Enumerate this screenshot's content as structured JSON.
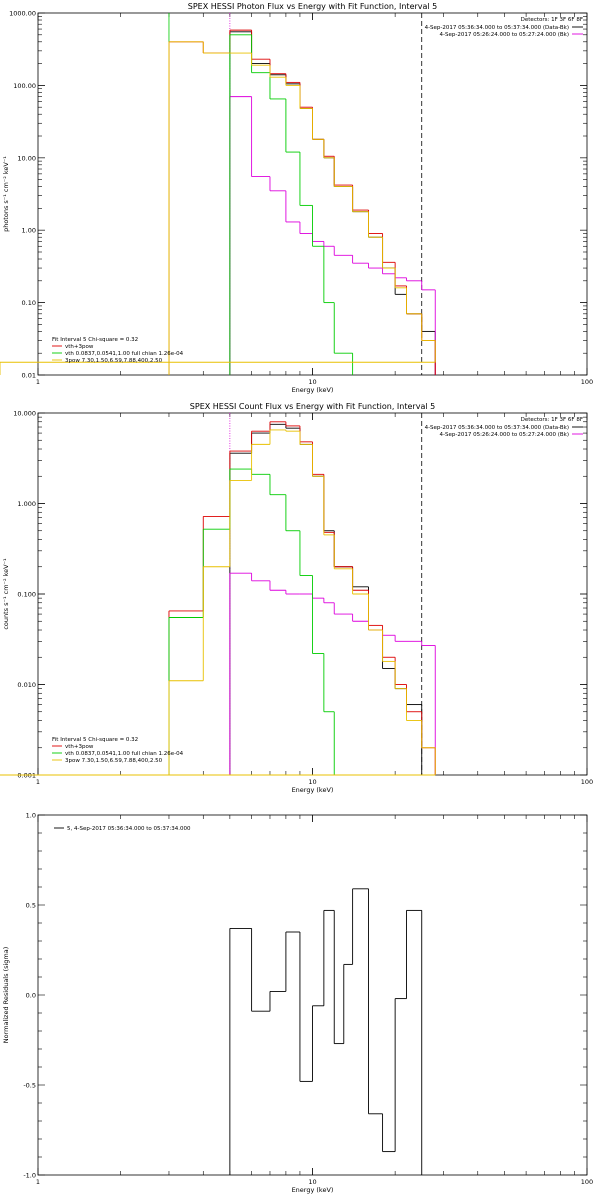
{
  "chart_data": [
    {
      "type": "line",
      "title": "SPEX HESSI Photon Flux vs Energy with Fit Function, Interval 5",
      "xlabel": "Energy (keV)",
      "ylabel": "photons s⁻¹ cm⁻² keV⁻¹",
      "xlim": [
        1,
        100
      ],
      "ylim": [
        0.01,
        1000
      ],
      "x_scale": "log",
      "y_scale": "log",
      "xtick_labels": [
        "1",
        "10",
        "100"
      ],
      "ytick_labels": [
        "1000.00",
        "100.00",
        "10.00",
        "1.00",
        "0.10",
        "0.01"
      ],
      "header": {
        "detectors": "Detectors: 1F 3F 6F 8F",
        "line1": "4-Sep-2017 05:36:34.000 to 05:37:34.000 (Data-Bk)",
        "line2": "4-Sep-2017 05:26:24.000 to 05:27:24.000 (Bk)",
        "line1_color": "#000000",
        "line2_color": "#dd00dd"
      },
      "legend": {
        "placement": "bottom-left",
        "title": "Fit Interval 5   Chi-square = 0.32",
        "entries": [
          {
            "label": "vth+3pow",
            "color": "#dd0000"
          },
          {
            "label": "vth 0.0837,0.0541,1.00  full chian 1.26e-04",
            "color": "#00cc00"
          },
          {
            "label": "3pow 7.30,1.50,6.59,7.88,400,2.50",
            "color": "#e8c000"
          }
        ]
      },
      "markers": [
        {
          "x": 3,
          "style": "solid",
          "color": "#00cc00"
        },
        {
          "x": 5,
          "style": "dotted",
          "color": "#dd00dd"
        },
        {
          "x": 25,
          "style": "dashed",
          "color": "#000000"
        }
      ],
      "bin_edges": [
        3,
        4,
        5,
        6,
        7,
        8,
        9,
        10,
        11,
        12,
        14,
        16,
        18,
        20,
        22,
        25,
        28
      ],
      "series": [
        {
          "name": "Data-Bk",
          "color": "#000000",
          "values": [
            null,
            null,
            550,
            200,
            140,
            105,
            48,
            18,
            10,
            4,
            1.8,
            0.8,
            0.3,
            0.13,
            0.07,
            0.04,
            null
          ]
        },
        {
          "name": "Bk",
          "color": "#dd00dd",
          "values": [
            null,
            null,
            70,
            5.5,
            3.5,
            1.3,
            0.9,
            0.7,
            0.6,
            0.45,
            0.35,
            0.3,
            0.25,
            0.22,
            0.2,
            0.15,
            null
          ]
        },
        {
          "name": "vth+3pow",
          "color": "#dd0000",
          "values": [
            400,
            280,
            580,
            230,
            145,
            110,
            50,
            18,
            10.5,
            4.2,
            1.9,
            0.9,
            0.36,
            0.17,
            0.07,
            0.03,
            null
          ]
        },
        {
          "name": "vth",
          "color": "#00cc00",
          "values": [
            null,
            null,
            500,
            150,
            65,
            12,
            2.2,
            0.6,
            0.1,
            0.02,
            null,
            null,
            null,
            null,
            null,
            null,
            null
          ]
        },
        {
          "name": "3pow",
          "color": "#e8c000",
          "values": [
            400,
            280,
            280,
            190,
            130,
            100,
            48,
            18,
            10,
            4,
            1.8,
            0.8,
            0.3,
            0.16,
            0.07,
            0.03,
            0.015
          ]
        }
      ]
    },
    {
      "type": "line",
      "title": "SPEX HESSI Count Flux vs Energy with Fit Function, Interval 5",
      "xlabel": "Energy (keV)",
      "ylabel": "counts s⁻¹ cm⁻² keV⁻¹",
      "xlim": [
        1,
        100
      ],
      "ylim": [
        0.001,
        10
      ],
      "x_scale": "log",
      "y_scale": "log",
      "xtick_labels": [
        "1",
        "10",
        "100"
      ],
      "ytick_labels": [
        "10.000",
        "1.000",
        "0.100",
        "0.010",
        "0.001"
      ],
      "header": {
        "detectors": "Detectors: 1F 3F 6F 8F",
        "line1": "4-Sep-2017 05:36:34.000 to 05:37:34.000 (Data-Bk)",
        "line2": "4-Sep-2017 05:26:24.000 to 05:27:24.000 (Bk)",
        "line1_color": "#000000",
        "line2_color": "#dd00dd"
      },
      "legend": {
        "placement": "bottom-left",
        "title": "Fit Interval 5   Chi-square = 0.32",
        "entries": [
          {
            "label": "vth+3pow",
            "color": "#dd0000"
          },
          {
            "label": "vth 0.0837,0.0541,1.00  full chian 1.26e-04",
            "color": "#00cc00"
          },
          {
            "label": "3pow 7.30,1.50,6.59,7.88,400,2.50",
            "color": "#e8c000"
          }
        ]
      },
      "markers": [
        {
          "x": 5,
          "style": "dotted",
          "color": "#dd00dd"
        },
        {
          "x": 25,
          "style": "dashed",
          "color": "#000000"
        }
      ],
      "bin_edges": [
        3,
        4,
        5,
        6,
        7,
        8,
        9,
        10,
        11,
        12,
        14,
        16,
        18,
        20,
        22,
        25,
        28
      ],
      "series": [
        {
          "name": "Data-Bk",
          "color": "#000000",
          "values": [
            null,
            null,
            3.6,
            6.0,
            7.5,
            6.8,
            4.5,
            2.0,
            0.5,
            0.2,
            0.12,
            0.04,
            0.015,
            0.009,
            0.006,
            null,
            null
          ]
        },
        {
          "name": "Bk",
          "color": "#dd00dd",
          "values": [
            null,
            null,
            0.17,
            0.14,
            0.11,
            0.1,
            0.1,
            0.09,
            0.08,
            0.06,
            0.05,
            0.04,
            0.035,
            0.03,
            0.03,
            0.027,
            null
          ]
        },
        {
          "name": "vth+3pow",
          "color": "#dd0000",
          "values": [
            0.065,
            0.72,
            3.8,
            6.3,
            8.0,
            7.2,
            4.8,
            2.1,
            0.48,
            0.2,
            0.11,
            0.045,
            0.02,
            0.01,
            0.005,
            0.002,
            null
          ]
        },
        {
          "name": "vth",
          "color": "#00cc00",
          "values": [
            0.055,
            0.52,
            2.4,
            2.1,
            1.25,
            0.5,
            0.16,
            0.022,
            0.005,
            0.001,
            null,
            null,
            null,
            null,
            null,
            null,
            null
          ]
        },
        {
          "name": "3pow",
          "color": "#e8c000",
          "values": [
            0.011,
            0.2,
            1.8,
            4.5,
            6.5,
            6.3,
            4.5,
            2.0,
            0.45,
            0.19,
            0.1,
            0.04,
            0.018,
            0.009,
            0.004,
            0.002,
            0.001
          ]
        }
      ]
    },
    {
      "type": "line",
      "title": "",
      "xlabel": "Energy (keV)",
      "ylabel": "Normalized Residuals (sigma)",
      "xlim": [
        1,
        100
      ],
      "ylim": [
        -1,
        1
      ],
      "x_scale": "log",
      "y_scale": "linear",
      "xtick_labels": [
        "1",
        "10",
        "100"
      ],
      "ytick_labels": [
        "1.0",
        "0.5",
        "0.0",
        "-0.5",
        "-1.0"
      ],
      "legend": {
        "placement": "top-left",
        "entries": [
          {
            "label": "5,  4-Sep-2017 05:36:34.000 to 05:37:34.000",
            "color": "#000000"
          }
        ]
      },
      "bin_edges": [
        5,
        6,
        7,
        8,
        9,
        10,
        11,
        12,
        13,
        14,
        16,
        18,
        20,
        22,
        25
      ],
      "series": [
        {
          "name": "5",
          "color": "#000000",
          "values": [
            0.37,
            -0.09,
            0.02,
            0.35,
            -0.48,
            -0.06,
            0.47,
            -0.27,
            0.17,
            0.59,
            -0.66,
            -0.87,
            -0.02,
            0.47
          ]
        }
      ]
    }
  ]
}
